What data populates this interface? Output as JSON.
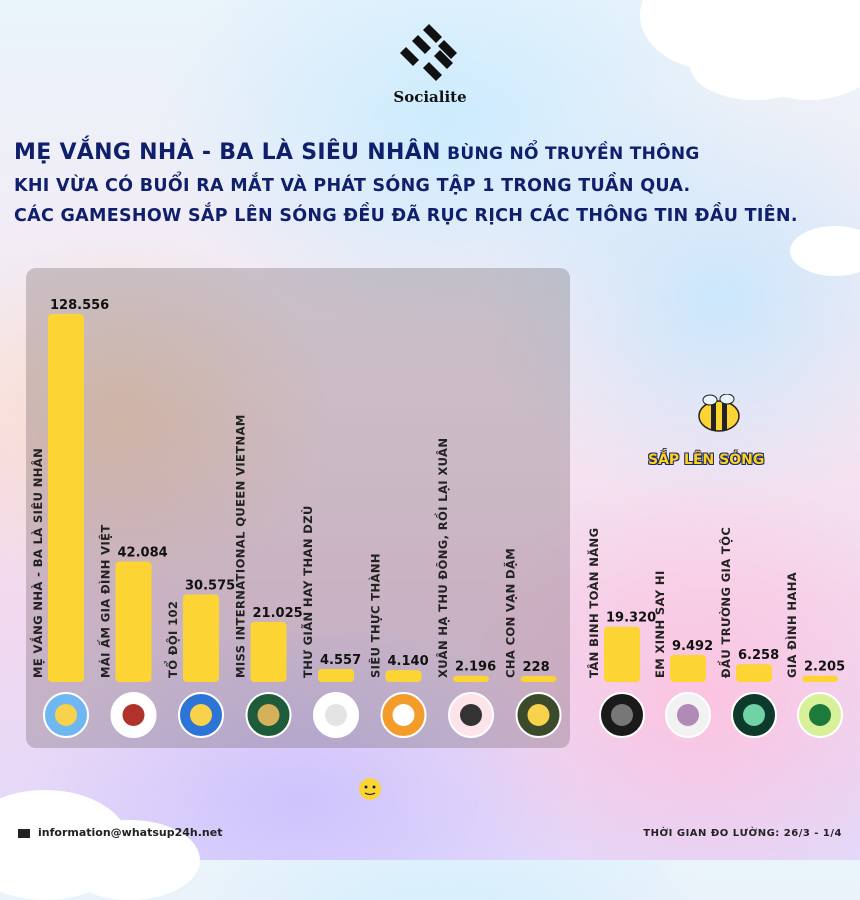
{
  "brand": "Socialite",
  "headline": {
    "line1_highlight": "MẸ VẮNG NHÀ - BA LÀ SIÊU NHÂN",
    "line1_rest": "BÙNG NỔ TRUYỀN THÔNG",
    "line2": "KHI VỪA CÓ BUỔI RA MẮT VÀ PHÁT SÓNG TẬP 1 TRONG TUẦN QUA.",
    "line3": "CÁC GAMESHOW SẮP LÊN SÓNG ĐỀU ĐÃ RỤC RỊCH CÁC THÔNG TIN ĐẦU TIÊN."
  },
  "upcoming_label": "SẮP LÊN SÓNG",
  "footer": {
    "email": "information@whatsup24h.net",
    "period": "THỜI GIAN ĐO LƯỜNG: 26/3 - 1/4"
  },
  "colors": {
    "bar": "#fcd535",
    "title": "#0f1f6b",
    "upcoming": "#ffd21f"
  },
  "chart_data": {
    "type": "bar",
    "groups": [
      {
        "name": "",
        "categories": [
          "MẸ VẮNG NHÀ - BA LÀ SIÊU NHÂN",
          "MÁI ẤM GIA ĐÌNH VIỆT",
          "TỔ ĐỘI 102",
          "MISS INTERNATIONAL QUEEN VIETNAM",
          "THƯ GIÃN HAY THAN DZÙ",
          "SIÊU THỰC THÀNH",
          "XUÂN HẠ THU ĐÔNG, RỒI LẠI XUÂN",
          "CHA CON VẠN DẶM"
        ],
        "values": [
          128556,
          42084,
          30575,
          21025,
          4557,
          4140,
          2196,
          228
        ],
        "value_labels": [
          "128.556",
          "42.084",
          "30.575",
          "21.025",
          "4.557",
          "4.140",
          "2.196",
          "228"
        ]
      },
      {
        "name": "SẮP LÊN SÓNG",
        "categories": [
          "TÂN BINH TOÀN NĂNG",
          "EM XINH SAY HI",
          "ĐẦU TRƯỜNG GIA TỘC",
          "GIA ĐÌNH HAHA"
        ],
        "values": [
          19320,
          9492,
          6258,
          2205
        ],
        "value_labels": [
          "19.320",
          "9.492",
          "6.258",
          "2.205"
        ]
      }
    ],
    "ylim": [
      0,
      128556
    ],
    "grid": false,
    "legend": "none"
  }
}
